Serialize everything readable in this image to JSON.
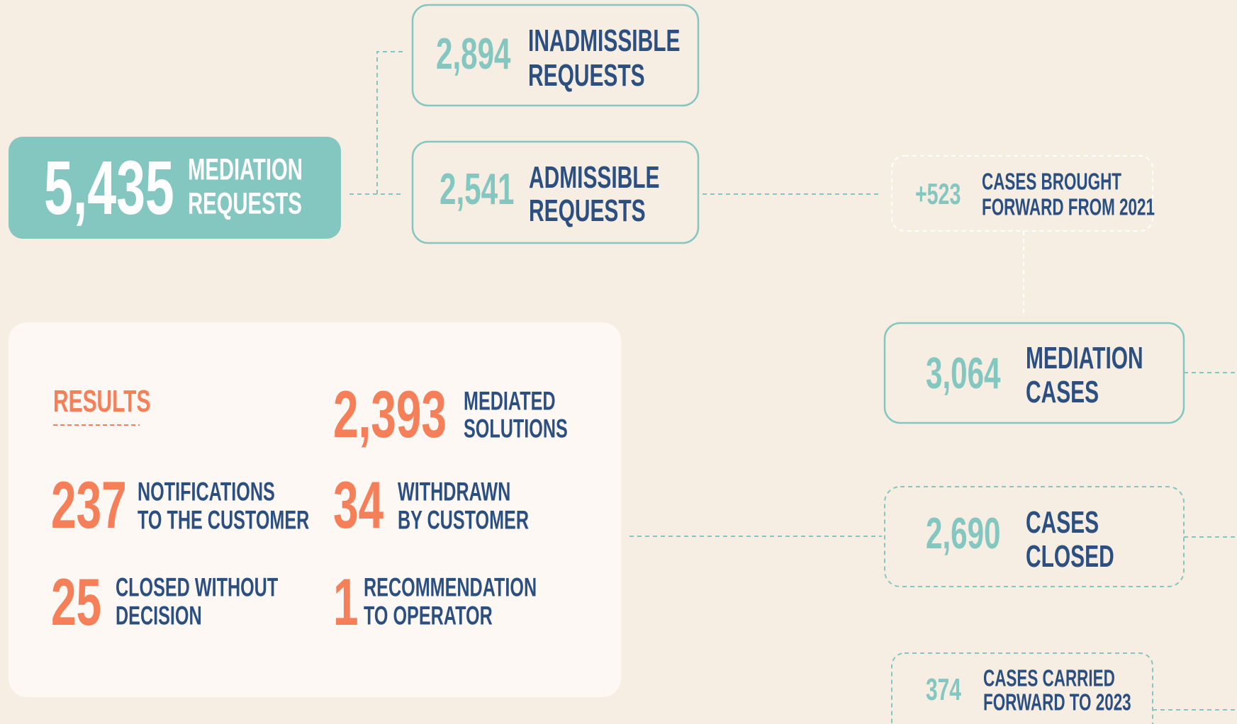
{
  "nodes": [
    {
      "value": "5,435",
      "label": [
        "MEDIATION",
        "REQUESTS"
      ]
    },
    {
      "value": "2,894",
      "label": [
        "INADMISSIBLE",
        "REQUESTS"
      ]
    },
    {
      "value": "2,541",
      "label": [
        "ADMISSIBLE",
        "REQUESTS"
      ]
    },
    {
      "value": "+523",
      "label": [
        "CASES BROUGHT",
        "FORWARD FROM 2021"
      ]
    },
    {
      "value": "3,064",
      "label": [
        "MEDIATION",
        "CASES"
      ]
    },
    {
      "value": "2,690",
      "label": [
        "CASES",
        "CLOSED"
      ]
    },
    {
      "value": "374",
      "label": [
        "CASES CARRIED",
        "FORWARD TO 2023"
      ]
    }
  ],
  "results": {
    "title": "RESULTS",
    "items": [
      {
        "value": "2,393",
        "label": [
          "MEDIATED",
          "SOLUTIONS"
        ]
      },
      {
        "value": "237",
        "label": [
          "NOTIFICATIONS",
          "TO THE CUSTOMER"
        ]
      },
      {
        "value": "34",
        "label": [
          "WITHDRAWN",
          "BY CUSTOMER"
        ]
      },
      {
        "value": "25",
        "label": [
          "CLOSED WITHOUT",
          "DECISION"
        ]
      },
      {
        "value": "1",
        "label": [
          "RECOMMENDATION",
          "TO OPERATOR"
        ]
      }
    ]
  }
}
